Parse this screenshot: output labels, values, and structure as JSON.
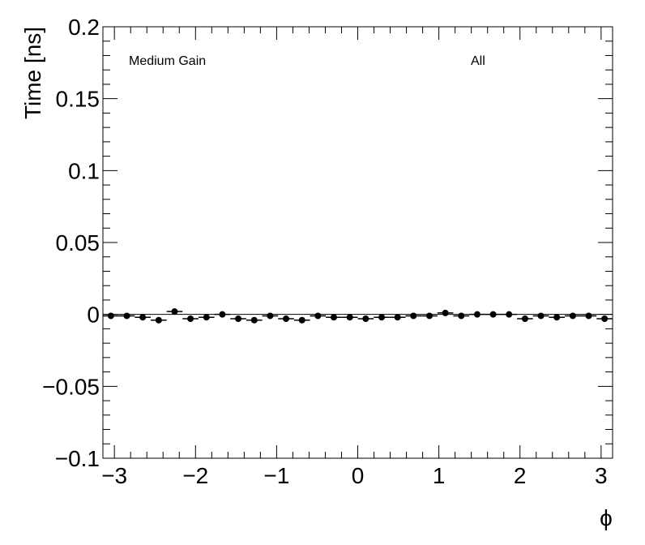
{
  "chart_data": {
    "type": "scatter",
    "title": "",
    "xlabel": "ϕ",
    "ylabel": "Time [ns]",
    "xlim": [
      -3.1416,
      3.1416
    ],
    "ylim": [
      -0.1,
      0.2
    ],
    "x_ticks": [
      -3,
      -2,
      -1,
      0,
      1,
      2,
      3
    ],
    "x_tick_labels": [
      "−3",
      "−2",
      "−1",
      "0",
      "1",
      "2",
      "3"
    ],
    "y_ticks": [
      -0.1,
      -0.05,
      0,
      0.05,
      0.1,
      0.15,
      0.2
    ],
    "y_tick_labels": [
      "−0.1",
      "−0.05",
      "0",
      "0.05",
      "0.1",
      "0.15",
      "0.2"
    ],
    "annotations": [
      "Medium Gain",
      "All"
    ],
    "grid": false,
    "reference_line": 0,
    "series": [
      {
        "x": [
          -3.043,
          -2.847,
          -2.651,
          -2.454,
          -2.258,
          -2.062,
          -1.865,
          -1.669,
          -1.473,
          -1.276,
          -1.08,
          -0.884,
          -0.687,
          -0.491,
          -0.295,
          -0.098,
          0.098,
          0.295,
          0.491,
          0.687,
          0.884,
          1.08,
          1.276,
          1.473,
          1.669,
          1.865,
          2.062,
          2.258,
          2.454,
          2.651,
          2.847,
          3.043
        ],
        "y": [
          -0.001,
          -0.001,
          -0.002,
          -0.004,
          0.002,
          -0.003,
          -0.002,
          0.0,
          -0.003,
          -0.004,
          -0.001,
          -0.003,
          -0.004,
          -0.001,
          -0.002,
          -0.002,
          -0.003,
          -0.002,
          -0.002,
          -0.001,
          -0.001,
          0.001,
          -0.001,
          0.0,
          0.0,
          0.0,
          -0.003,
          -0.001,
          -0.002,
          -0.001,
          -0.001,
          -0.003
        ],
        "xerr": 0.098,
        "yerr": 0.0006,
        "marker": "circle",
        "color": "#000000"
      }
    ]
  }
}
